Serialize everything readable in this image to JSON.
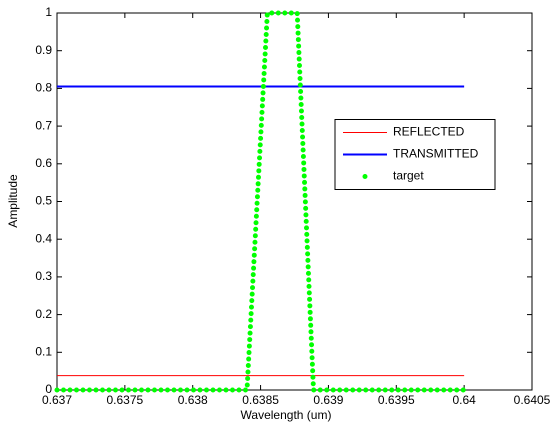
{
  "chart_data": {
    "type": "line",
    "xlabel": "Wavelength (um)",
    "ylabel": "Amplitude",
    "xlim": [
      0.637,
      0.6405
    ],
    "ylim": [
      0,
      1
    ],
    "xticks": [
      0.637,
      0.6375,
      0.638,
      0.6385,
      0.639,
      0.6395,
      0.64,
      0.6405
    ],
    "yticks": [
      0,
      0.1,
      0.2,
      0.3,
      0.4,
      0.5,
      0.6,
      0.7,
      0.8,
      0.9,
      1
    ],
    "legend_location": "right",
    "series": [
      {
        "name": "REFLECTED",
        "color": "#ff0000",
        "style": "solid",
        "x": [
          0.637,
          0.64
        ],
        "values": [
          0.038,
          0.038
        ]
      },
      {
        "name": "TRANSMITTED",
        "color": "#0000ff",
        "style": "solid",
        "x": [
          0.637,
          0.64
        ],
        "values": [
          0.805,
          0.805
        ]
      },
      {
        "name": "target",
        "color": "#00ff00",
        "style": "dotted",
        "x": [
          0.637,
          0.6384,
          0.63855,
          0.63877,
          0.63889,
          0.64
        ],
        "values": [
          0,
          0,
          1,
          1,
          0,
          0
        ]
      }
    ]
  }
}
